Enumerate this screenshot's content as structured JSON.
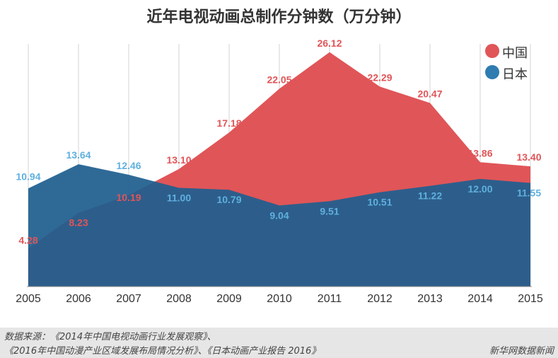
{
  "title": "近年电视动画总制作分钟数（万分钟）",
  "colors": {
    "china": "#e05558",
    "japan": "#1f5f8f",
    "japan_legend": "#2e7cb0",
    "japan_label": "#5fb0df",
    "grid": "#d3d3d3"
  },
  "chart_data": {
    "type": "area",
    "title": "近年电视动画总制作分钟数（万分钟）",
    "x": [
      "2005",
      "2006",
      "2007",
      "2008",
      "2009",
      "2010",
      "2011",
      "2012",
      "2013",
      "2014",
      "2015"
    ],
    "series": [
      {
        "name": "中国",
        "values": [
          4.28,
          8.23,
          10.19,
          13.1,
          17.18,
          22.05,
          26.12,
          22.29,
          20.47,
          13.86,
          13.4
        ]
      },
      {
        "name": "日本",
        "values": [
          10.94,
          13.64,
          12.46,
          11.0,
          10.79,
          9.04,
          9.51,
          10.51,
          11.22,
          12.0,
          11.55
        ]
      }
    ],
    "value_labels": {
      "中国": [
        "4.28",
        "8.23",
        "10.19",
        "13.10",
        "17.18",
        "22.05",
        "26.12",
        "22.29",
        "20.47",
        "13.86",
        "13.40"
      ],
      "日本": [
        "10.94",
        "13.64",
        "12.46",
        "11.00",
        "10.79",
        "9.04",
        "9.51",
        "10.51",
        "11.22",
        "12.00",
        "11.55"
      ]
    },
    "ylim": [
      0,
      28
    ],
    "xlabel": "",
    "ylabel": "",
    "grid": "vertical",
    "legend_position": "top-right"
  },
  "legend": {
    "china": "中国",
    "japan": "日本"
  },
  "footer": {
    "source_line1": "数据来源：《2014年中国电视动画行业发展观察》、",
    "source_line2": "《2016年中国动漫产业区域发展布局情况分析》、《日本动画产业报告 2016》",
    "brand": "新华网数据新闻"
  }
}
